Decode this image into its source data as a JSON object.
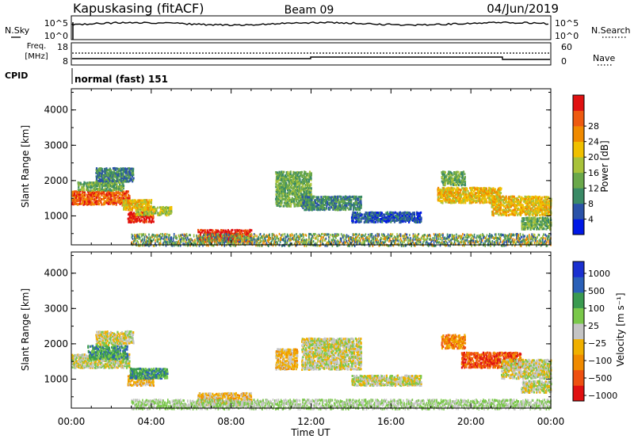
{
  "header": {
    "station": "Kapuskasing (fitACF)",
    "beam": "Beam 09",
    "date": "04/Jun/2019"
  },
  "status_panels": {
    "nsky_label": "N.Sky",
    "nsearch_label": "N.Search",
    "freq_label": "Freq.",
    "freq_unit": "[MHz]",
    "nave_label": "Nave",
    "cpid_label": "CPID",
    "cpid_value": "normal (fast) 151",
    "noise_ticks_left": [
      "10^5",
      "10^0"
    ],
    "noise_ticks_right": [
      "10^5",
      "10^0"
    ],
    "freq_ticks": [
      "18",
      "8"
    ],
    "nave_ticks": [
      "60",
      "0"
    ]
  },
  "chart_data": [
    {
      "type": "heatmap",
      "name": "power",
      "ylabel": "Slant Range [km]",
      "ylim": [
        180,
        4600
      ],
      "yticks": [
        1000,
        2000,
        3000,
        4000
      ],
      "xlim": [
        0,
        24
      ],
      "colorbar": {
        "label": "Power [dB]",
        "ticks": [
          "4",
          "8",
          "12",
          "16",
          "20",
          "24",
          "28"
        ],
        "bands": [
          "#0018e6",
          "#2a52a8",
          "#3a8a66",
          "#6aa84a",
          "#a8c23a",
          "#f0c000",
          "#f08a00",
          "#ee5a10",
          "#e01010"
        ]
      },
      "regions": [
        {
          "t": [
            0.0,
            2.9
          ],
          "r": [
            1350,
            1750
          ],
          "level": 7
        },
        {
          "t": [
            0.3,
            2.6
          ],
          "r": [
            1750,
            2000
          ],
          "level": 3
        },
        {
          "t": [
            1.2,
            3.1
          ],
          "r": [
            2000,
            2400
          ],
          "level": 2
        },
        {
          "t": [
            2.8,
            4.1
          ],
          "r": [
            850,
            1150
          ],
          "level": 8
        },
        {
          "t": [
            3.2,
            5.0
          ],
          "r": [
            1050,
            1300
          ],
          "level": 4
        },
        {
          "t": [
            2.5,
            4.0
          ],
          "r": [
            1200,
            1500
          ],
          "level": 5
        },
        {
          "t": [
            6.3,
            9.0
          ],
          "r": [
            300,
            650
          ],
          "level": 8
        },
        {
          "t": [
            10.2,
            12.0
          ],
          "r": [
            1300,
            2300
          ],
          "level": 3
        },
        {
          "t": [
            11.5,
            14.5
          ],
          "r": [
            1200,
            1600
          ],
          "level": 2
        },
        {
          "t": [
            14.0,
            17.5
          ],
          "r": [
            850,
            1150
          ],
          "level": 1
        },
        {
          "t": [
            18.3,
            21.5
          ],
          "r": [
            1400,
            1850
          ],
          "level": 5
        },
        {
          "t": [
            21.0,
            24.0
          ],
          "r": [
            1050,
            1600
          ],
          "level": 5
        },
        {
          "t": [
            22.5,
            24.0
          ],
          "r": [
            650,
            1000
          ],
          "level": 3
        },
        {
          "t": [
            18.5,
            19.7
          ],
          "r": [
            1900,
            2300
          ],
          "level": 3
        }
      ],
      "ground_scatter_band": {
        "t": [
          3.0,
          24.0
        ],
        "r": [
          180,
          520
        ],
        "levels": [
          1,
          2,
          3,
          4,
          6
        ]
      }
    },
    {
      "type": "heatmap",
      "name": "velocity",
      "xlabel": "Time UT",
      "ylabel": "Slant Range [km]",
      "ylim": [
        180,
        4600
      ],
      "yticks": [
        1000,
        2000,
        3000,
        4000
      ],
      "xlim": [
        0,
        24
      ],
      "xticks": [
        "00:00",
        "04:00",
        "08:00",
        "12:00",
        "16:00",
        "20:00",
        "00:00"
      ],
      "colorbar": {
        "label": "Velocity [m s⁻¹]",
        "ticks": [
          "1000",
          "500",
          "100",
          "25",
          "−25",
          "−100",
          "−500",
          "−1000"
        ],
        "bands": [
          "#1a30d0",
          "#2a60b8",
          "#3a9a50",
          "#7ac84a",
          "#c4c4c4",
          "#f0b000",
          "#f08a00",
          "#ee5010",
          "#e01010"
        ]
      },
      "regions": [
        {
          "t": [
            0.0,
            2.9
          ],
          "r": [
            1350,
            1750
          ],
          "level": 4
        },
        {
          "t": [
            0.8,
            2.8
          ],
          "r": [
            1600,
            2000
          ],
          "level": 2
        },
        {
          "t": [
            1.2,
            3.1
          ],
          "r": [
            2000,
            2400
          ],
          "level": 4
        },
        {
          "t": [
            2.8,
            4.1
          ],
          "r": [
            850,
            1150
          ],
          "level": 5
        },
        {
          "t": [
            2.9,
            4.8
          ],
          "r": [
            1050,
            1350
          ],
          "level": 2
        },
        {
          "t": [
            6.3,
            9.0
          ],
          "r": [
            300,
            650
          ],
          "level": 5
        },
        {
          "t": [
            10.2,
            11.3
          ],
          "r": [
            1300,
            1900
          ],
          "level": 5
        },
        {
          "t": [
            11.5,
            14.5
          ],
          "r": [
            1300,
            2200
          ],
          "level": 4
        },
        {
          "t": [
            14.0,
            17.5
          ],
          "r": [
            850,
            1150
          ],
          "level": 4
        },
        {
          "t": [
            19.5,
            22.5
          ],
          "r": [
            1350,
            1800
          ],
          "level": 7
        },
        {
          "t": [
            21.5,
            24.0
          ],
          "r": [
            1050,
            1600
          ],
          "level": 4
        },
        {
          "t": [
            22.5,
            24.0
          ],
          "r": [
            650,
            1000
          ],
          "level": 4
        },
        {
          "t": [
            18.5,
            19.7
          ],
          "r": [
            1900,
            2300
          ],
          "level": 6
        }
      ],
      "ground_scatter_band": {
        "t": [
          3.0,
          24.0
        ],
        "r": [
          180,
          450
        ],
        "levels": [
          3,
          4
        ]
      }
    }
  ]
}
